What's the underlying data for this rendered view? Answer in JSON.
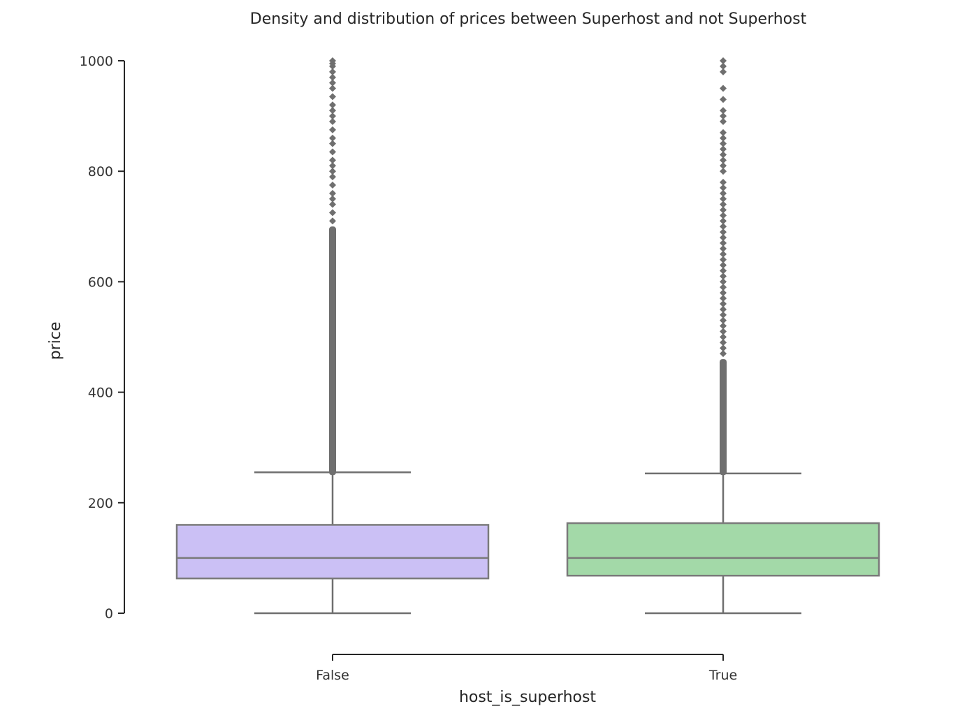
{
  "chart_data": {
    "type": "box",
    "title": "Density and distribution of prices between Superhost and not Superhost",
    "xlabel": "host_is_superhost",
    "ylabel": "price",
    "ylim": [
      0,
      1000
    ],
    "yticks": [
      0,
      200,
      400,
      600,
      800,
      1000
    ],
    "grid": false,
    "categories": [
      "False",
      "True"
    ],
    "boxes": [
      {
        "category": "False",
        "color": "#cbc0f5",
        "whisker_low": 0,
        "q1": 63,
        "median": 100,
        "q3": 160,
        "whisker_high": 255,
        "outliers_dense_range": [
          250,
          700
        ],
        "outliers_sparse": [
          710,
          725,
          740,
          750,
          760,
          775,
          790,
          800,
          810,
          820,
          835,
          850,
          860,
          875,
          890,
          900,
          910,
          920,
          935,
          950,
          960,
          970,
          980,
          990,
          995,
          1000
        ]
      },
      {
        "category": "True",
        "color": "#a3d9a8",
        "whisker_low": 0,
        "q1": 68,
        "median": 100,
        "q3": 163,
        "whisker_high": 253,
        "outliers_dense_range": [
          250,
          460
        ],
        "outliers_sparse": [
          470,
          480,
          490,
          500,
          510,
          520,
          530,
          540,
          550,
          560,
          570,
          580,
          590,
          600,
          610,
          620,
          630,
          640,
          650,
          660,
          670,
          680,
          690,
          700,
          710,
          720,
          730,
          740,
          750,
          760,
          770,
          780,
          800,
          810,
          820,
          830,
          840,
          850,
          860,
          870,
          890,
          900,
          910,
          930,
          950,
          980,
          990,
          1000
        ]
      }
    ]
  }
}
